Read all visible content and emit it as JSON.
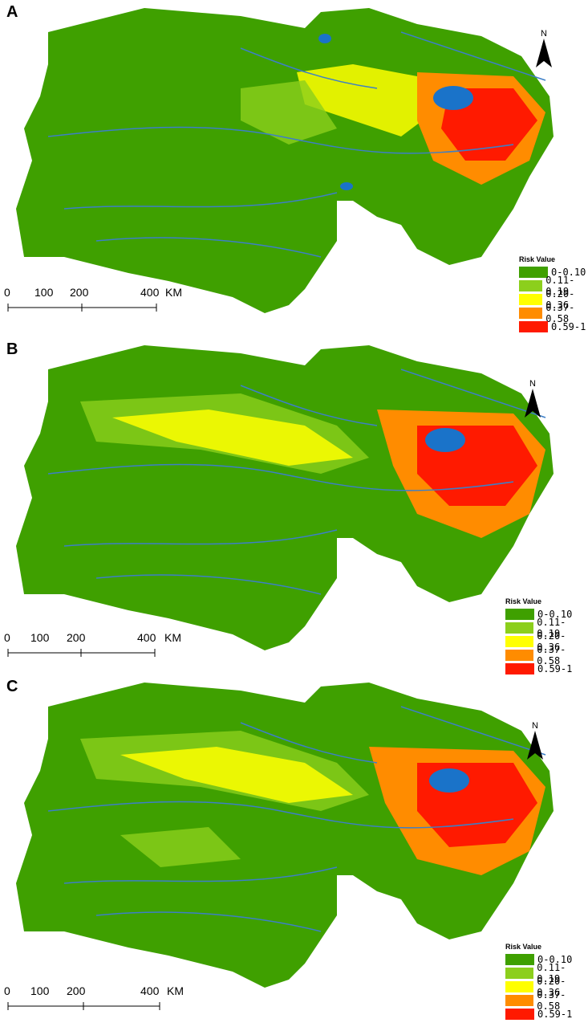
{
  "panels": [
    {
      "letter": "A",
      "top": 0
    },
    {
      "letter": "B",
      "top": 420
    },
    {
      "letter": "C",
      "top": 840
    }
  ],
  "legend": {
    "title": "Risk Value",
    "items": [
      {
        "label": "0-0.10",
        "color": "#3fa000"
      },
      {
        "label": "0.11-0.19",
        "color": "#8ccf1c"
      },
      {
        "label": "0.20-0.36",
        "color": "#ffff00"
      },
      {
        "label": "0.37-0.58",
        "color": "#ff8c00"
      },
      {
        "label": "0.59-1",
        "color": "#ff1a00"
      }
    ]
  },
  "scale": {
    "ticks": [
      "0",
      "100",
      "200",
      "400"
    ],
    "unit": "KM"
  },
  "north_label": "N",
  "colors": {
    "water": "#1a73c9",
    "river": "#3d7fc7"
  }
}
